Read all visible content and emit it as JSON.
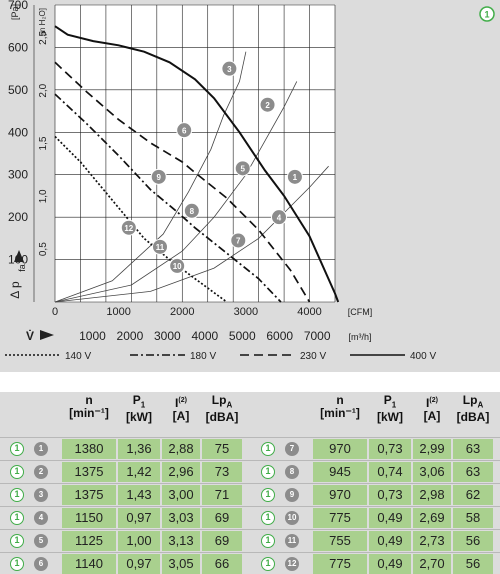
{
  "chart_data": {
    "type": "line",
    "curve_badge": "1",
    "x_unit": "[CFM]",
    "x_unit_alt": "[m³/h]",
    "y_unit": "[Pa]",
    "y_unit_alt": "[in H₂O]",
    "y_axis_symbol": "Δ p",
    "y_axis_sub": "fa",
    "x_axis_symbol": "V̇",
    "xlim": [
      0,
      4400
    ],
    "ylim": [
      0,
      700
    ],
    "x_ticks": [
      0,
      1000,
      2000,
      3000,
      4000
    ],
    "x_tick_labels": [
      "0",
      "1000",
      "2000",
      "3000",
      "4000"
    ],
    "y_ticks": [
      100,
      200,
      300,
      400,
      500,
      600,
      700
    ],
    "y_tick_labels": [
      "100",
      "200",
      "300",
      "400",
      "500",
      "600",
      "700"
    ],
    "y_alt_labels": [
      "0,5",
      "1,0",
      "1,5",
      "2,0",
      "2,5"
    ],
    "x_alt_labels": [
      "1000",
      "2000",
      "3000",
      "4000",
      "5000",
      "6000",
      "7000"
    ],
    "series": [
      {
        "name": "140 V",
        "style": "dotted",
        "points": [
          [
            0,
            390
          ],
          [
            400,
            330
          ],
          [
            900,
            240
          ],
          [
            1400,
            150
          ],
          [
            1800,
            100
          ],
          [
            2200,
            55
          ],
          [
            2700,
            0
          ]
        ]
      },
      {
        "name": "180 V",
        "style": "dashdot",
        "points": [
          [
            0,
            490
          ],
          [
            500,
            420
          ],
          [
            1000,
            345
          ],
          [
            1500,
            265
          ],
          [
            1900,
            215
          ],
          [
            2200,
            175
          ],
          [
            2700,
            115
          ],
          [
            3200,
            55
          ],
          [
            3550,
            0
          ]
        ]
      },
      {
        "name": "230 V",
        "style": "dashed",
        "points": [
          [
            0,
            565
          ],
          [
            500,
            495
          ],
          [
            1000,
            430
          ],
          [
            1500,
            375
          ],
          [
            2000,
            330
          ],
          [
            2200,
            305
          ],
          [
            2700,
            245
          ],
          [
            3200,
            170
          ],
          [
            3700,
            75
          ],
          [
            4000,
            0
          ]
        ]
      },
      {
        "name": "400 V",
        "style": "solid",
        "points": [
          [
            0,
            650
          ],
          [
            200,
            630
          ],
          [
            600,
            615
          ],
          [
            1000,
            605
          ],
          [
            1400,
            590
          ],
          [
            1800,
            565
          ],
          [
            2200,
            525
          ],
          [
            2500,
            480
          ],
          [
            2900,
            400
          ],
          [
            3300,
            310
          ],
          [
            3600,
            250
          ],
          [
            4000,
            155
          ],
          [
            4400,
            20
          ],
          [
            4450,
            0
          ]
        ]
      }
    ],
    "system_curves": [
      [
        [
          0,
          0
        ],
        [
          900,
          50
        ],
        [
          1700,
          160
        ],
        [
          2100,
          260
        ],
        [
          2450,
          360
        ],
        [
          2650,
          440
        ],
        [
          2900,
          520
        ],
        [
          3000,
          590
        ]
      ],
      [
        [
          0,
          0
        ],
        [
          1200,
          40
        ],
        [
          2000,
          120
        ],
        [
          2500,
          200
        ],
        [
          3000,
          300
        ],
        [
          3300,
          380
        ],
        [
          3600,
          460
        ],
        [
          3800,
          520
        ]
      ],
      [
        [
          0,
          0
        ],
        [
          1500,
          25
        ],
        [
          2500,
          80
        ],
        [
          3200,
          150
        ],
        [
          3600,
          210
        ],
        [
          4000,
          270
        ],
        [
          4300,
          320
        ]
      ]
    ],
    "points": [
      {
        "label": "1",
        "x": 3770,
        "y": 295
      },
      {
        "label": "2",
        "x": 3340,
        "y": 465
      },
      {
        "label": "3",
        "x": 2740,
        "y": 550
      },
      {
        "label": "4",
        "x": 3520,
        "y": 200
      },
      {
        "label": "5",
        "x": 2950,
        "y": 315
      },
      {
        "label": "6",
        "x": 2030,
        "y": 405
      },
      {
        "label": "7",
        "x": 2880,
        "y": 145
      },
      {
        "label": "8",
        "x": 2150,
        "y": 215
      },
      {
        "label": "9",
        "x": 1630,
        "y": 295
      },
      {
        "label": "10",
        "x": 1920,
        "y": 85
      },
      {
        "label": "11",
        "x": 1650,
        "y": 130
      },
      {
        "label": "12",
        "x": 1160,
        "y": 175
      }
    ]
  },
  "table": {
    "headers": {
      "n": "n",
      "n_unit": "[min⁻¹]",
      "p1": "P",
      "p1_sub": "1",
      "p1_unit": "[kW]",
      "i": "I",
      "i_sup": "(2)",
      "i_unit": "[A]",
      "lpa": "Lp",
      "lpa_sub": "A",
      "lpa_unit": "[dBA]"
    },
    "curve_badge": "1",
    "left_rows": [
      {
        "pt": "1",
        "n": "1380",
        "p1": "1,36",
        "i": "2,88",
        "lpa": "75"
      },
      {
        "pt": "2",
        "n": "1375",
        "p1": "1,42",
        "i": "2,96",
        "lpa": "73"
      },
      {
        "pt": "3",
        "n": "1375",
        "p1": "1,43",
        "i": "3,00",
        "lpa": "71"
      },
      {
        "pt": "4",
        "n": "1150",
        "p1": "0,97",
        "i": "3,03",
        "lpa": "69"
      },
      {
        "pt": "5",
        "n": "1125",
        "p1": "1,00",
        "i": "3,13",
        "lpa": "69"
      },
      {
        "pt": "6",
        "n": "1140",
        "p1": "0,97",
        "i": "3,05",
        "lpa": "66"
      }
    ],
    "right_rows": [
      {
        "pt": "7",
        "n": "970",
        "p1": "0,73",
        "i": "2,99",
        "lpa": "63"
      },
      {
        "pt": "8",
        "n": "945",
        "p1": "0,74",
        "i": "3,06",
        "lpa": "63"
      },
      {
        "pt": "9",
        "n": "970",
        "p1": "0,73",
        "i": "2,98",
        "lpa": "62"
      },
      {
        "pt": "10",
        "n": "775",
        "p1": "0,49",
        "i": "2,69",
        "lpa": "58"
      },
      {
        "pt": "11",
        "n": "755",
        "p1": "0,49",
        "i": "2,73",
        "lpa": "56"
      },
      {
        "pt": "12",
        "n": "775",
        "p1": "0,49",
        "i": "2,70",
        "lpa": "56"
      }
    ]
  }
}
